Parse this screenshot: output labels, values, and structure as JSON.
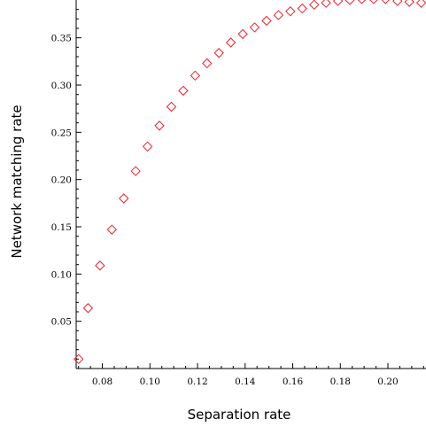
{
  "chart_data": {
    "type": "scatter",
    "xlabel": "Separation rate",
    "ylabel": "Network matching rate",
    "xlim": [
      0.069,
      0.216
    ],
    "ylim": [
      0.0,
      0.39
    ],
    "x_ticks": [
      "0.08",
      "0.10",
      "0.12",
      "0.14",
      "0.16",
      "0.18",
      "0.20"
    ],
    "y_ticks": [
      "0.05",
      "0.10",
      "0.15",
      "0.20",
      "0.25",
      "0.30",
      "0.35"
    ],
    "grid": false,
    "marker": "diamond-open",
    "marker_color": "#e8222a",
    "series": [
      {
        "x": [
          0.07,
          0.074,
          0.079,
          0.084,
          0.089,
          0.094,
          0.099,
          0.104,
          0.109,
          0.114,
          0.119,
          0.124,
          0.129,
          0.134,
          0.139,
          0.144,
          0.149,
          0.154,
          0.159,
          0.164,
          0.169,
          0.174,
          0.179,
          0.184,
          0.189,
          0.194,
          0.199,
          0.204,
          0.209,
          0.214
        ],
        "y": [
          0.01,
          0.064,
          0.109,
          0.147,
          0.18,
          0.209,
          0.235,
          0.257,
          0.277,
          0.294,
          0.31,
          0.323,
          0.334,
          0.345,
          0.354,
          0.361,
          0.368,
          0.374,
          0.378,
          0.381,
          0.385,
          0.387,
          0.389,
          0.39,
          0.391,
          0.391,
          0.391,
          0.389,
          0.388,
          0.387
        ]
      }
    ]
  }
}
